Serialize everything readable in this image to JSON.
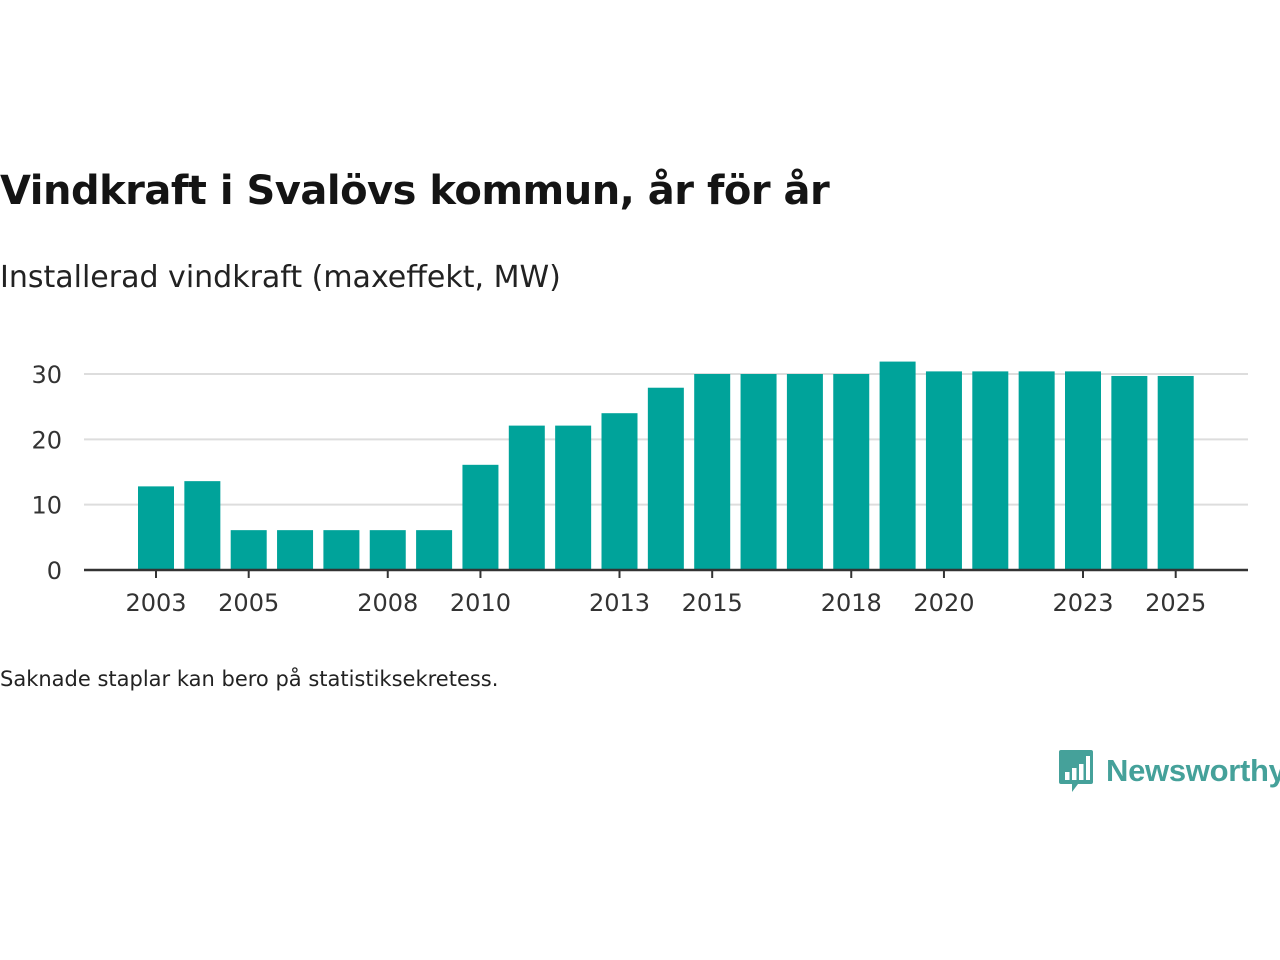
{
  "title": "Vindkraft i Svalövs kommun, år för år",
  "subtitle": "Installerad vindkraft (maxeffekt, MW)",
  "footnote": "Saknade staplar kan bero på statistiksekretess.",
  "logo": {
    "text": "Newsworthy",
    "icon": "newsworthy-bar-chart-logo-icon"
  },
  "colors": {
    "bar": "#00a39a",
    "grid": "#dddddd",
    "axis": "#333333",
    "logo": "#45a19a"
  },
  "chart_data": {
    "type": "bar",
    "title": "Vindkraft i Svalövs kommun, år för år",
    "xlabel": "",
    "ylabel": "Installerad vindkraft (maxeffekt, MW)",
    "categories": [
      "2003",
      "2004",
      "2005",
      "2006",
      "2007",
      "2008",
      "2009",
      "2010",
      "2011",
      "2012",
      "2013",
      "2014",
      "2015",
      "2016",
      "2017",
      "2018",
      "2019",
      "2020",
      "2021",
      "2022",
      "2023",
      "2024",
      "2025"
    ],
    "values": [
      12.8,
      13.6,
      6.1,
      6.1,
      6.1,
      6.1,
      6.1,
      16.1,
      22.1,
      22.1,
      24.0,
      27.9,
      30.0,
      30.0,
      30.0,
      30.0,
      31.9,
      30.4,
      30.4,
      30.4,
      30.4,
      29.7,
      29.7
    ],
    "x_tick_labels": [
      "2003",
      "2005",
      "2008",
      "2010",
      "2013",
      "2015",
      "2018",
      "2020",
      "2023",
      "2025"
    ],
    "y_ticks": [
      0,
      10,
      20,
      30
    ],
    "ylim": [
      0,
      30
    ],
    "grid": true
  }
}
